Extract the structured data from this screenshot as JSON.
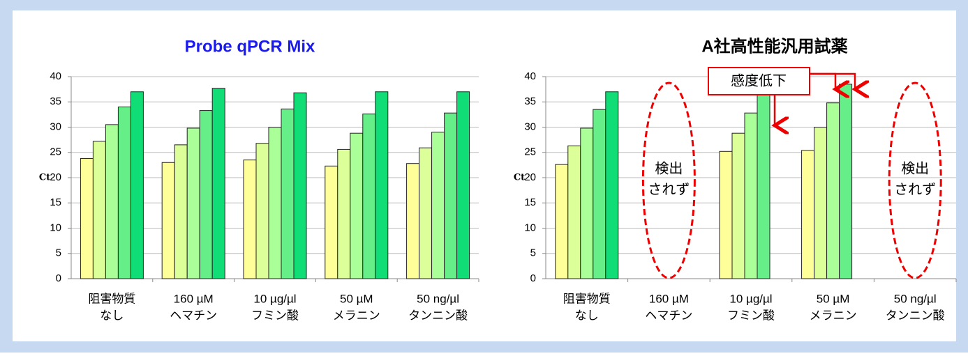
{
  "chart_data": [
    {
      "type": "bar",
      "title": "Probe qPCR Mix",
      "y_label": "Ct",
      "categories": [
        [
          "阻害物質",
          "なし"
        ],
        [
          "160 µM",
          "ヘマチン"
        ],
        [
          "10 µg/µl",
          "フミン酸"
        ],
        [
          "50 µM",
          "メラニン"
        ],
        [
          "50 ng/µl",
          "タンニン酸"
        ]
      ],
      "series": [
        {
          "color": "#ffff99",
          "values": [
            23.8,
            23,
            23.5,
            22.3,
            22.8
          ]
        },
        {
          "color": "#ddff99",
          "values": [
            27.2,
            26.5,
            26.8,
            25.6,
            25.9
          ]
        },
        {
          "color": "#aaff99",
          "values": [
            30.5,
            29.8,
            30,
            28.8,
            29
          ]
        },
        {
          "color": "#66ee88",
          "values": [
            34,
            33.3,
            33.6,
            32.6,
            32.8
          ]
        },
        {
          "color": "#11dd77",
          "values": [
            37,
            37.7,
            36.8,
            37,
            37
          ]
        }
      ],
      "ylim": [
        0,
        40
      ],
      "yticks": [
        0,
        5,
        10,
        15,
        20,
        25,
        30,
        35,
        40
      ],
      "grid": true
    },
    {
      "type": "bar",
      "title": "A社高性能汎用試薬",
      "y_label": "Ct",
      "categories": [
        [
          "阻害物質",
          "なし"
        ],
        [
          "160 µM",
          "ヘマチン"
        ],
        [
          "10 µg/µl",
          "フミン酸"
        ],
        [
          "50 µM",
          "メラニン"
        ],
        [
          "50 ng/µl",
          "タンニン酸"
        ]
      ],
      "series": [
        {
          "color": "#ffff99",
          "values": [
            22.6,
            null,
            25.2,
            25.4,
            null
          ]
        },
        {
          "color": "#ddff99",
          "values": [
            26.3,
            null,
            28.8,
            30,
            null
          ]
        },
        {
          "color": "#aaff99",
          "values": [
            29.8,
            null,
            32.8,
            34.8,
            null
          ]
        },
        {
          "color": "#66ee88",
          "values": [
            33.5,
            null,
            36.5,
            38.5,
            null
          ]
        },
        {
          "color": "#11dd77",
          "values": [
            37,
            null,
            null,
            null,
            null
          ]
        }
      ],
      "ylim": [
        0,
        40
      ],
      "yticks": [
        0,
        5,
        10,
        15,
        20,
        25,
        30,
        35,
        40
      ],
      "grid": true,
      "annotations": [
        [
          "検出",
          "されず"
        ],
        [
          "検出",
          "されず"
        ],
        "感度低下"
      ]
    }
  ]
}
